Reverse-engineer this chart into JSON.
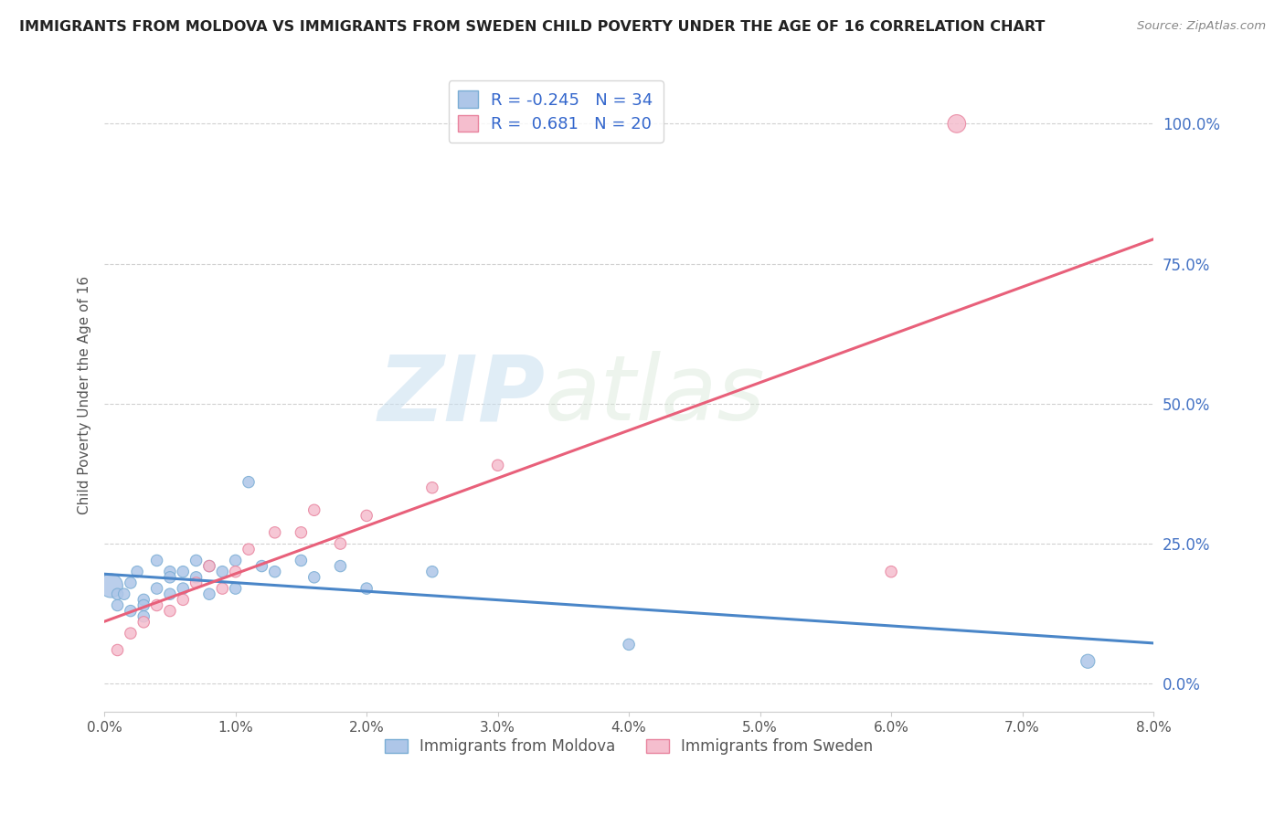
{
  "title": "IMMIGRANTS FROM MOLDOVA VS IMMIGRANTS FROM SWEDEN CHILD POVERTY UNDER THE AGE OF 16 CORRELATION CHART",
  "source": "Source: ZipAtlas.com",
  "ylabel": "Child Poverty Under the Age of 16",
  "xlim": [
    0.0,
    0.08
  ],
  "ylim": [
    -0.05,
    1.08
  ],
  "xticks": [
    0.0,
    0.01,
    0.02,
    0.03,
    0.04,
    0.05,
    0.06,
    0.07,
    0.08
  ],
  "xticklabels": [
    "0.0%",
    "1.0%",
    "2.0%",
    "3.0%",
    "4.0%",
    "5.0%",
    "6.0%",
    "7.0%",
    "8.0%"
  ],
  "yticks": [
    0.0,
    0.25,
    0.5,
    0.75,
    1.0
  ],
  "yticklabels": [
    "0.0%",
    "25.0%",
    "50.0%",
    "75.0%",
    "100.0%"
  ],
  "moldova_color": "#aec6e8",
  "moldova_edge": "#7aadd4",
  "sweden_color": "#f5bece",
  "sweden_edge": "#e8839e",
  "moldova_line_color": "#4a86c8",
  "sweden_line_color": "#e8607a",
  "moldova_R": -0.245,
  "moldova_N": 34,
  "sweden_R": 0.681,
  "sweden_N": 20,
  "watermark_zip": "ZIP",
  "watermark_atlas": "atlas",
  "legend_entries": [
    "Immigrants from Moldova",
    "Immigrants from Sweden"
  ],
  "moldova_x": [
    0.0005,
    0.001,
    0.001,
    0.0015,
    0.002,
    0.002,
    0.0025,
    0.003,
    0.003,
    0.003,
    0.004,
    0.004,
    0.005,
    0.005,
    0.005,
    0.006,
    0.006,
    0.007,
    0.007,
    0.008,
    0.008,
    0.009,
    0.01,
    0.01,
    0.011,
    0.012,
    0.013,
    0.015,
    0.016,
    0.018,
    0.02,
    0.025,
    0.04,
    0.075
  ],
  "moldova_y": [
    0.175,
    0.14,
    0.16,
    0.16,
    0.18,
    0.13,
    0.2,
    0.15,
    0.14,
    0.12,
    0.17,
    0.22,
    0.2,
    0.19,
    0.16,
    0.2,
    0.17,
    0.22,
    0.19,
    0.21,
    0.16,
    0.2,
    0.22,
    0.17,
    0.36,
    0.21,
    0.2,
    0.22,
    0.19,
    0.21,
    0.17,
    0.2,
    0.07,
    0.04
  ],
  "moldova_sizes": [
    350,
    80,
    80,
    80,
    80,
    80,
    80,
    80,
    80,
    80,
    80,
    80,
    80,
    80,
    80,
    80,
    80,
    80,
    80,
    80,
    80,
    80,
    80,
    80,
    80,
    80,
    80,
    80,
    80,
    80,
    80,
    80,
    80,
    120
  ],
  "sweden_x": [
    0.001,
    0.002,
    0.003,
    0.004,
    0.005,
    0.006,
    0.007,
    0.008,
    0.009,
    0.01,
    0.011,
    0.013,
    0.015,
    0.016,
    0.018,
    0.02,
    0.025,
    0.03,
    0.06,
    0.065
  ],
  "sweden_y": [
    0.06,
    0.09,
    0.11,
    0.14,
    0.13,
    0.15,
    0.18,
    0.21,
    0.17,
    0.2,
    0.24,
    0.27,
    0.27,
    0.31,
    0.25,
    0.3,
    0.35,
    0.39,
    0.2,
    1.0
  ],
  "sweden_sizes": [
    80,
    80,
    80,
    80,
    80,
    80,
    80,
    80,
    80,
    80,
    80,
    80,
    80,
    80,
    80,
    80,
    80,
    80,
    80,
    200
  ],
  "moldova_line_intercept": 0.165,
  "moldova_line_slope": -1.55,
  "sweden_line_intercept": -0.02,
  "sweden_line_slope": 8.5
}
